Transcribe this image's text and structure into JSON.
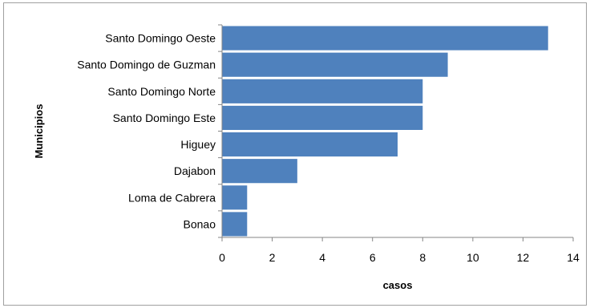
{
  "chart_data": {
    "type": "bar",
    "orientation": "horizontal",
    "categories": [
      "Santo Domingo Oeste",
      "Santo Domingo de Guzman",
      "Santo Domingo Norte",
      "Santo Domingo Este",
      "Higuey",
      "Dajabon",
      "Loma de Cabrera",
      "Bonao"
    ],
    "values": [
      13,
      9,
      8,
      8,
      7,
      3,
      1,
      1
    ],
    "xlabel": "casos",
    "ylabel": "Municipios",
    "xlim": [
      0,
      14
    ],
    "xticks": [
      "0",
      "2",
      "4",
      "6",
      "8",
      "10",
      "12",
      "14"
    ],
    "grid": false,
    "legend": "none",
    "bar_color": "#4F81BD"
  }
}
